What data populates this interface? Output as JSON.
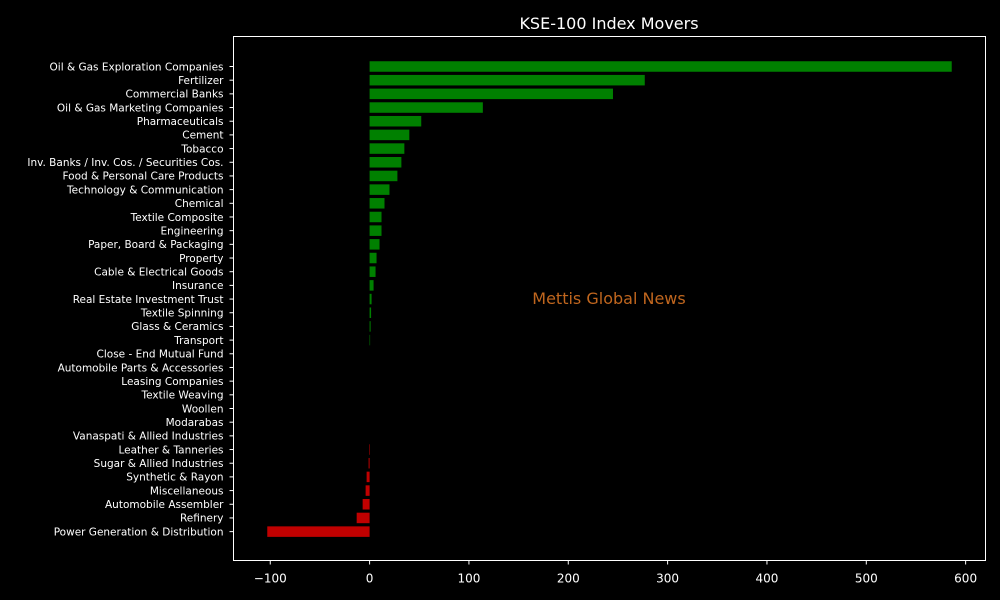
{
  "chart_data": {
    "type": "bar",
    "orientation": "horizontal",
    "title": "KSE-100 Index Movers",
    "watermark": "Mettis Global News",
    "xlabel": "",
    "ylabel": "",
    "xlim": [
      -137,
      620
    ],
    "xticks": [
      -100,
      0,
      100,
      200,
      300,
      400,
      500,
      600
    ],
    "grid": false,
    "legend": "none",
    "colors": {
      "background": "#000000",
      "positive": "#008000",
      "negative": "#c00000",
      "text": "#ffffff",
      "axis": "#ffffff",
      "watermark": "#c0661e"
    },
    "categories": [
      "Oil & Gas Exploration Companies",
      "Fertilizer",
      "Commercial Banks",
      "Oil & Gas Marketing Companies",
      "Pharmaceuticals",
      "Cement",
      "Tobacco",
      "Inv. Banks / Inv. Cos. / Securities Cos.",
      "Food & Personal Care Products",
      "Technology & Communication",
      "Chemical",
      "Textile Composite",
      "Engineering",
      "Paper, Board & Packaging",
      "Property",
      "Cable & Electrical Goods",
      "Insurance",
      "Real Estate Investment Trust",
      "Textile Spinning",
      "Glass & Ceramics",
      "Transport",
      "Close - End Mutual Fund",
      "Automobile Parts & Accessories",
      "Leasing Companies",
      "Textile Weaving",
      "Woollen",
      "Modarabas",
      "Vanaspati & Allied Industries",
      "Leather & Tanneries",
      "Sugar & Allied Industries",
      "Synthetic & Rayon",
      "Miscellaneous",
      "Automobile Assembler",
      "Refinery",
      "Power Generation & Distribution"
    ],
    "values": [
      586,
      277,
      245,
      114,
      52,
      40,
      35,
      32,
      28,
      20,
      15,
      12,
      12,
      10,
      7,
      6,
      4,
      2,
      1.5,
      1,
      0.5,
      0,
      0,
      0,
      0,
      0,
      0,
      0,
      -0.5,
      -1,
      -3,
      -4,
      -7,
      -13,
      -103
    ]
  }
}
